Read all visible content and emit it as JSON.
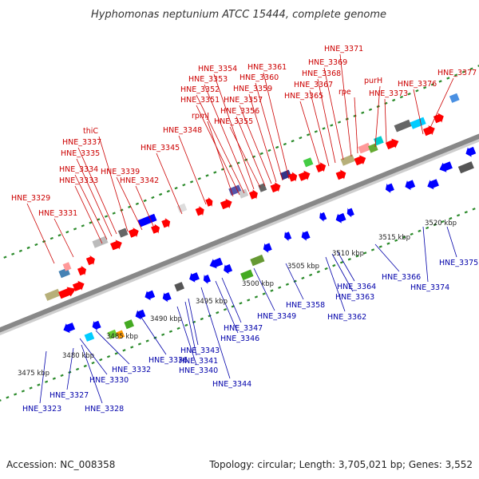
{
  "title": "Hyphomonas neptunium ATCC 15444, complete genome",
  "footer": {
    "accession": "Accession: NC_008358",
    "topology": "Topology: circular; Length: 3,705,021 bp; Genes: 3,552"
  },
  "colors": {
    "backbone": "#888888",
    "forward_strand": "#ff0000",
    "reverse_strand": "#0000ff",
    "top_label": "#cc0000",
    "bottom_label": "#0000aa",
    "tick": "#2a8a2a"
  },
  "kbp_labels": [
    "3475 kbp",
    "3480 kbp",
    "3485 kbp",
    "3490 kbp",
    "3495 kbp",
    "3500 kbp",
    "3505 kbp",
    "3510 kbp",
    "3515 kbp",
    "3520 kbp"
  ],
  "top_labels": [
    "HNE_3329",
    "HNE_3331",
    "HNE_3333",
    "HNE_3334",
    "HNE_3335",
    "HNE_3337",
    "thiC",
    "HNE_3339",
    "HNE_3342",
    "HNE_3345",
    "HNE_3348",
    "rpmJ",
    "HNE_3351",
    "HNE_3352",
    "HNE_3353",
    "HNE_3354",
    "HNE_3355",
    "HNE_3356",
    "HNE_3357",
    "HNE_3359",
    "HNE_3360",
    "HNE_3361",
    "HNE_3365",
    "HNE_3367",
    "HNE_3368",
    "HNE_3369",
    "HNE_3371",
    "rpe",
    "purH",
    "HNE_3373",
    "HNE_3376",
    "HNE_3377"
  ],
  "bottom_labels": [
    "HNE_3323",
    "HNE_3327",
    "HNE_3328",
    "HNE_3330",
    "HNE_3332",
    "HNE_3336",
    "HNE_3340",
    "HNE_3341",
    "HNE_3343",
    "HNE_3344",
    "HNE_3346",
    "HNE_3347",
    "HNE_3349",
    "HNE_3358",
    "HNE_3362",
    "HNE_3363",
    "HNE_3364",
    "HNE_3366",
    "HNE_3374",
    "HNE_3375"
  ]
}
